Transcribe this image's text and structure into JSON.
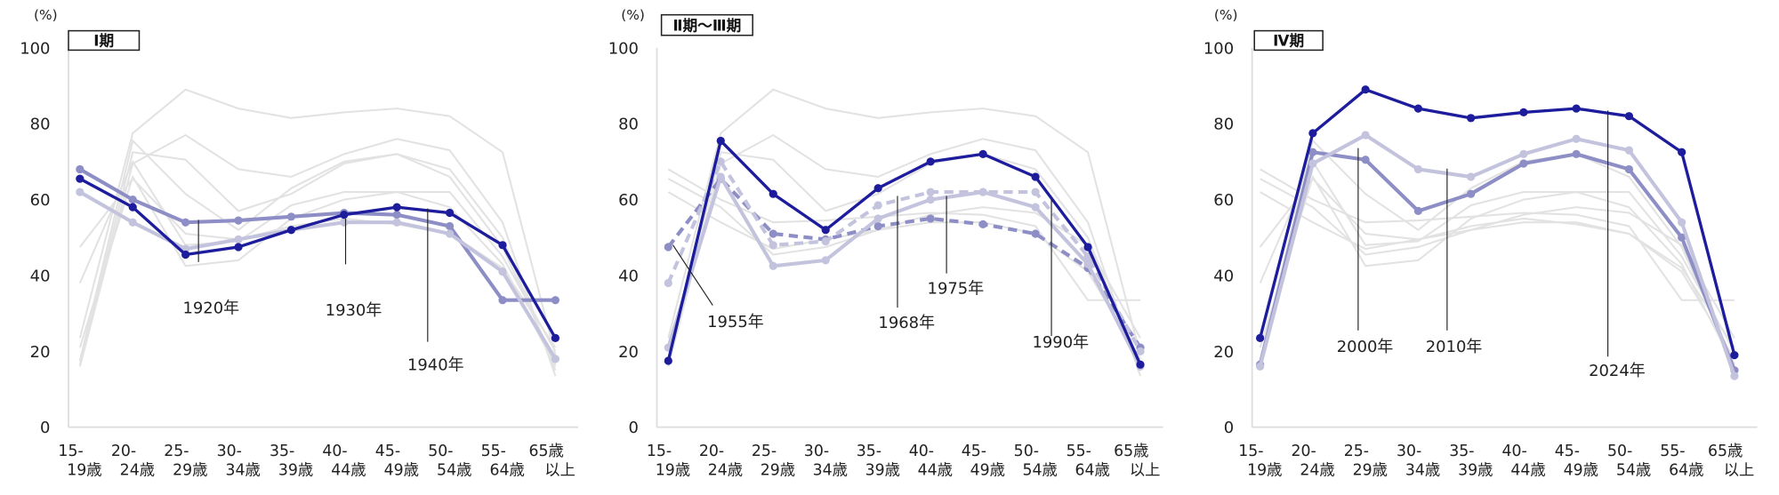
{
  "chart_data": {
    "type": "line",
    "unit_label": "(%)",
    "categories": [
      [
        "15-",
        "19歳"
      ],
      [
        "20-",
        "24歳"
      ],
      [
        "25-",
        "29歳"
      ],
      [
        "30-",
        "34歳"
      ],
      [
        "35-",
        "39歳"
      ],
      [
        "40-",
        "44歳"
      ],
      [
        "45-",
        "49歳"
      ],
      [
        "50-",
        "54歳"
      ],
      [
        "55-",
        "64歳"
      ],
      [
        "65歳",
        "以上"
      ]
    ],
    "ylim": [
      0,
      100
    ],
    "yticks": [
      0,
      20,
      40,
      60,
      80,
      100
    ],
    "grid": false,
    "colors": {
      "navy": "#1c1c9c",
      "medium": "#8e8ec6",
      "light": "#c3c3de",
      "background": "#e2e2e2"
    },
    "series": [
      {
        "name": "1920年",
        "values": [
          68,
          60,
          54,
          54.5,
          55.5,
          56.5,
          56,
          53,
          33.5,
          33.5
        ]
      },
      {
        "name": "1930年",
        "values": [
          62,
          54,
          47,
          49.5,
          52,
          54,
          54,
          51,
          41,
          18
        ]
      },
      {
        "name": "1940年",
        "values": [
          65.5,
          58,
          45.5,
          47.5,
          52,
          56,
          58,
          56.5,
          48,
          23.5
        ]
      },
      {
        "name": "1955年",
        "values": [
          47.5,
          65.5,
          51,
          49.5,
          53,
          55,
          53.5,
          51,
          42,
          21
        ]
      },
      {
        "name": "1968年",
        "values": [
          38,
          70,
          48,
          49,
          58.5,
          62,
          62,
          62,
          45,
          20
        ]
      },
      {
        "name": "1975年",
        "values": [
          21,
          66,
          42.5,
          44,
          55,
          60,
          62,
          58,
          43,
          16
        ]
      },
      {
        "name": "1990年",
        "values": [
          17.5,
          75.5,
          61.5,
          52,
          63,
          70,
          72,
          66,
          47.5,
          16.5
        ]
      },
      {
        "name": "2000年",
        "values": [
          16.5,
          72.5,
          70.5,
          57,
          61.5,
          69.5,
          72,
          68,
          50,
          15
        ]
      },
      {
        "name": "2010年",
        "values": [
          16,
          69.5,
          77,
          68,
          66,
          72,
          76,
          73,
          54,
          13.5
        ]
      },
      {
        "name": "2024年",
        "values": [
          23.5,
          77.5,
          89,
          84,
          81.5,
          83,
          84,
          82,
          72.5,
          19
        ]
      }
    ],
    "panels": [
      {
        "title": "Ⅰ期",
        "highlight": [
          {
            "series": "1920年",
            "color": "medium",
            "dashed": false
          },
          {
            "series": "1930年",
            "color": "light",
            "dashed": false
          },
          {
            "series": "1940年",
            "color": "navy",
            "dashed": false
          }
        ]
      },
      {
        "title": "Ⅱ期～Ⅲ期",
        "highlight": [
          {
            "series": "1955年",
            "color": "medium",
            "dashed": true
          },
          {
            "series": "1968年",
            "color": "light",
            "dashed": true
          },
          {
            "series": "1975年",
            "color": "light",
            "dashed": false
          },
          {
            "series": "1990年",
            "color": "navy",
            "dashed": false
          }
        ]
      },
      {
        "title": "Ⅳ期",
        "highlight": [
          {
            "series": "2000年",
            "color": "medium",
            "dashed": false
          },
          {
            "series": "2010年",
            "color": "light",
            "dashed": false
          },
          {
            "series": "2024年",
            "color": "navy",
            "dashed": false
          }
        ]
      }
    ]
  }
}
